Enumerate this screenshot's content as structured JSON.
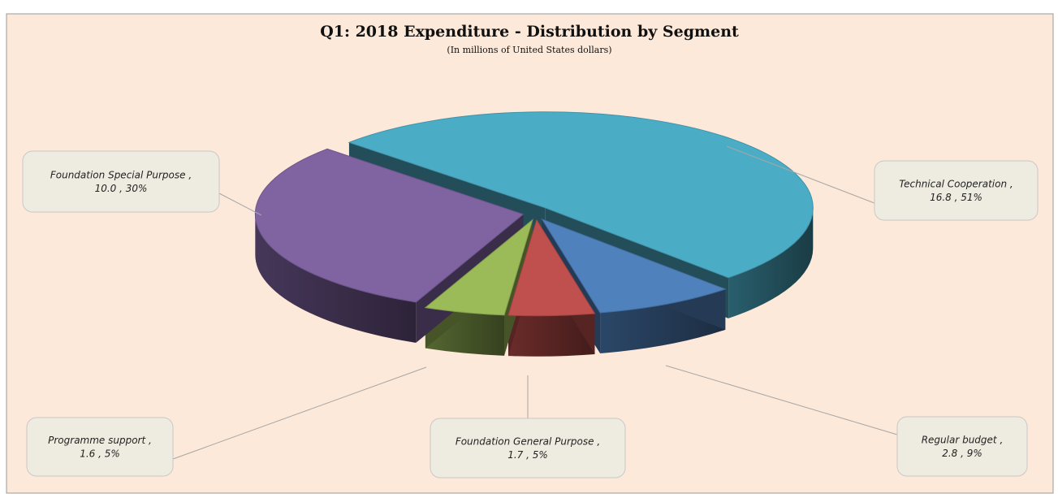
{
  "chart_data": {
    "type": "pie",
    "title": "Q1: 2018 Expenditure - Distribution by Segment",
    "subtitle": "(In millions of United States dollars)",
    "categories": [
      "Technical Cooperation",
      "Regular budget",
      "Foundation General Purpose",
      "Programme support",
      "Foundation Special Purpose"
    ],
    "values": [
      16.8,
      2.8,
      1.7,
      1.6,
      10.0
    ],
    "value_labels": [
      "16.8 , 51%",
      "2.8 , 9%",
      "1.7 , 5%",
      "1.6 , 5%",
      "10.0 , 30%"
    ],
    "label_separator": ",",
    "colors": [
      "#4bacc6",
      "#4f81bd",
      "#c0504d",
      "#9bbb59",
      "#8064a2"
    ]
  }
}
